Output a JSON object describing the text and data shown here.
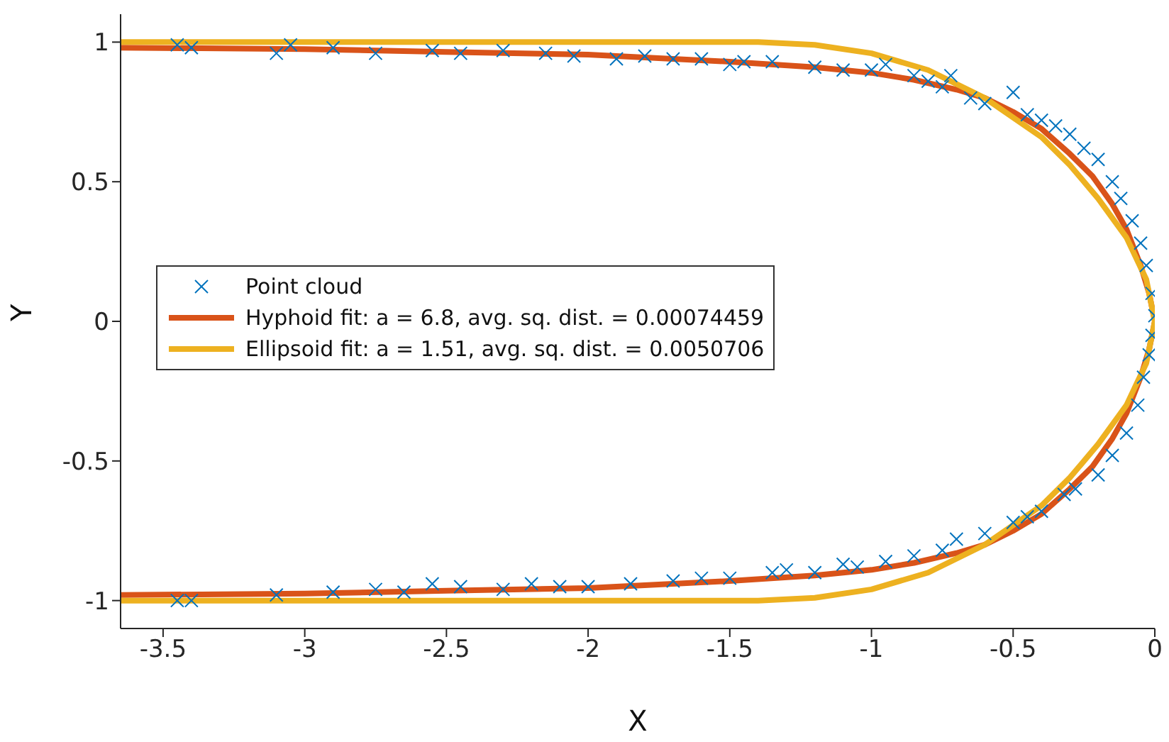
{
  "chart_data": {
    "type": "line",
    "xlabel": "X",
    "ylabel": "Y",
    "xlim": [
      -3.65,
      0
    ],
    "ylim": [
      -1.1,
      1.1
    ],
    "xticks": [
      -3.5,
      -3,
      -2.5,
      -2,
      -1.5,
      -1,
      -0.5,
      0
    ],
    "yticks": [
      -1,
      -0.5,
      0,
      0.5,
      1
    ],
    "grid": false,
    "legend": "left",
    "marker": "none",
    "series": [
      {
        "name": "Point cloud",
        "type": "scatter",
        "marker": "cross",
        "color": "#0072bd",
        "x": [
          -3.45,
          -3.4,
          -3.1,
          -3.05,
          -2.9,
          -2.75,
          -2.55,
          -2.45,
          -2.3,
          -2.15,
          -2.05,
          -1.9,
          -1.8,
          -1.7,
          -1.6,
          -1.5,
          -1.45,
          -1.35,
          -1.2,
          -1.1,
          -1.0,
          -0.95,
          -0.85,
          -0.8,
          -0.75,
          -0.72,
          -0.65,
          -0.6,
          -0.5,
          -0.45,
          -0.4,
          -0.35,
          -0.3,
          -0.25,
          -0.2,
          -0.15,
          -0.12,
          -0.08,
          -0.05,
          -0.03,
          -0.01,
          0,
          -0.01,
          -0.02,
          -0.04,
          -0.06,
          -0.1,
          -0.15,
          -0.2,
          -0.28,
          -0.32,
          -0.4,
          -0.45,
          -0.5,
          -0.6,
          -0.7,
          -0.75,
          -0.85,
          -0.95,
          -1.05,
          -1.1,
          -1.2,
          -1.3,
          -1.35,
          -1.5,
          -1.6,
          -1.7,
          -1.85,
          -2,
          -2.1,
          -2.2,
          -2.3,
          -2.45,
          -2.55,
          -2.65,
          -2.75,
          -2.9,
          -3.1,
          -3.4,
          -3.45
        ],
        "values": [
          0.99,
          0.98,
          0.96,
          0.99,
          0.98,
          0.96,
          0.97,
          0.96,
          0.97,
          0.96,
          0.95,
          0.94,
          0.95,
          0.94,
          0.94,
          0.92,
          0.93,
          0.93,
          0.91,
          0.9,
          0.9,
          0.92,
          0.88,
          0.86,
          0.84,
          0.88,
          0.8,
          0.78,
          0.82,
          0.74,
          0.72,
          0.7,
          0.67,
          0.62,
          0.58,
          0.5,
          0.44,
          0.36,
          0.28,
          0.2,
          0.1,
          0.02,
          -0.05,
          -0.12,
          -0.2,
          -0.3,
          -0.4,
          -0.48,
          -0.55,
          -0.6,
          -0.62,
          -0.68,
          -0.7,
          -0.72,
          -0.76,
          -0.78,
          -0.82,
          -0.84,
          -0.86,
          -0.88,
          -0.87,
          -0.9,
          -0.89,
          -0.9,
          -0.92,
          -0.92,
          -0.93,
          -0.94,
          -0.95,
          -0.95,
          -0.94,
          -0.96,
          -0.95,
          -0.94,
          -0.97,
          -0.96,
          -0.97,
          -0.98,
          -1.0,
          -1.0
        ]
      },
      {
        "name": "Hyphoid fit: a = 6.8, avg. sq. dist. = 0.00074459",
        "color": "#d95319",
        "x": [
          -3.65,
          -3,
          -2.5,
          -2,
          -1.5,
          -1.2,
          -1,
          -0.85,
          -0.7,
          -0.6,
          -0.5,
          -0.4,
          -0.3,
          -0.22,
          -0.15,
          -0.1,
          -0.05,
          -0.02,
          0,
          -0.02,
          -0.05,
          -0.1,
          -0.15,
          -0.22,
          -0.3,
          -0.4,
          -0.5,
          -0.6,
          -0.7,
          -0.85,
          -1,
          -1.2,
          -1.5,
          -2,
          -2.5,
          -3,
          -3.65
        ],
        "values": [
          0.98,
          0.975,
          0.965,
          0.955,
          0.93,
          0.91,
          0.89,
          0.865,
          0.83,
          0.8,
          0.75,
          0.69,
          0.6,
          0.52,
          0.42,
          0.33,
          0.2,
          0.1,
          0,
          -0.1,
          -0.2,
          -0.33,
          -0.42,
          -0.52,
          -0.6,
          -0.69,
          -0.75,
          -0.8,
          -0.83,
          -0.865,
          -0.89,
          -0.91,
          -0.93,
          -0.955,
          -0.965,
          -0.975,
          -0.98
        ]
      },
      {
        "name": "Ellipsoid fit: a = 1.51, avg. sq. dist. = 0.0050706",
        "color": "#edb120",
        "x": [
          -3.65,
          -2,
          -1.4,
          -1.2,
          -1,
          -0.8,
          -0.6,
          -0.4,
          -0.3,
          -0.2,
          -0.1,
          -0.03,
          0,
          -0.03,
          -0.1,
          -0.2,
          -0.3,
          -0.4,
          -0.6,
          -0.8,
          -1,
          -1.2,
          -1.4,
          -2,
          -3.65
        ],
        "values": [
          1,
          1,
          1,
          0.99,
          0.96,
          0.9,
          0.8,
          0.66,
          0.56,
          0.44,
          0.3,
          0.15,
          0,
          -0.15,
          -0.3,
          -0.44,
          -0.56,
          -0.66,
          -0.8,
          -0.9,
          -0.96,
          -0.99,
          -1,
          -1,
          -1
        ]
      }
    ]
  }
}
